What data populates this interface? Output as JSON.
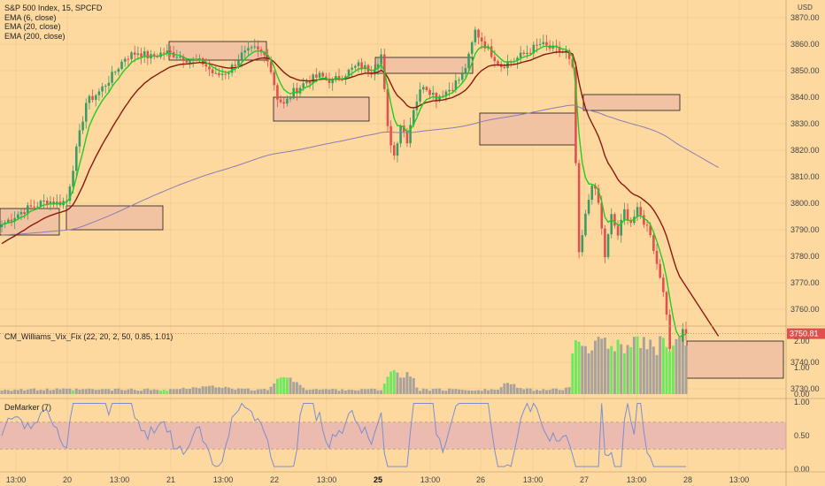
{
  "header": {
    "symbol": "S&P 500 Index, 15, SPCFD",
    "indicators": [
      "EMA (6, close)",
      "EMA (20, close)",
      "EMA (200, close)"
    ],
    "currency": "USD"
  },
  "price_axis": {
    "ticks": [
      3870,
      3860,
      3850,
      3840,
      3830,
      3820,
      3810,
      3800,
      3790,
      3780,
      3770,
      3760,
      3740,
      3730
    ],
    "last_price": "3750.81"
  },
  "vix_panel": {
    "title": "CM_Williams_Vix_Fix (22, 20, 2, 50, 0.85, 1.01)",
    "ticks": [
      "2.00",
      "1.00",
      "0.00"
    ]
  },
  "demarker_panel": {
    "title": "DeMarker (7)",
    "ticks": [
      "1.00",
      "0.50",
      "0.00"
    ]
  },
  "time_axis": {
    "labels": [
      "13:00",
      "20",
      "13:00",
      "21",
      "13:00",
      "22",
      "13:00",
      "25",
      "13:00",
      "26",
      "13:00",
      "27",
      "13:00",
      "28",
      "13:00"
    ],
    "bold": [
      "25"
    ]
  },
  "colors": {
    "background": "#fdd9a0",
    "up": "#3c9b63",
    "down": "#e0504c",
    "ema6": "#22cc22",
    "ema20": "#8b1a0a",
    "ema200": "#8a7cb8",
    "vix_high": "#6ee85c",
    "vix_normal": "#a8a29a",
    "zone_fill": "#f2c3a3",
    "demarker_line": "#7a8fd0",
    "demarker_band": "#ebbbb0"
  },
  "chart_data": [
    {
      "type": "candlestick",
      "title": "S&P 500 Index, 15, SPCFD",
      "ylabel": "USD",
      "ylim": [
        3727,
        3877
      ],
      "x_session_labels": [
        "20",
        "21",
        "22",
        "25",
        "26",
        "27",
        "28"
      ],
      "last_price": 3750.81,
      "price_path": [
        [
          0,
          3792
        ],
        [
          5,
          3796
        ],
        [
          8,
          3798
        ],
        [
          12,
          3800
        ],
        [
          14,
          3801
        ],
        [
          17,
          3800
        ],
        [
          20,
          3801
        ],
        [
          23,
          3820
        ],
        [
          26,
          3838
        ],
        [
          30,
          3842
        ],
        [
          34,
          3848
        ],
        [
          38,
          3855
        ],
        [
          42,
          3857
        ],
        [
          46,
          3855
        ],
        [
          50,
          3857
        ],
        [
          54,
          3856
        ],
        [
          58,
          3854
        ],
        [
          62,
          3853
        ],
        [
          66,
          3848
        ],
        [
          70,
          3850
        ],
        [
          74,
          3856
        ],
        [
          78,
          3858
        ],
        [
          82,
          3855
        ],
        [
          85,
          3840
        ],
        [
          87,
          3837
        ],
        [
          90,
          3842
        ],
        [
          94,
          3846
        ],
        [
          98,
          3848
        ],
        [
          102,
          3846
        ],
        [
          106,
          3849
        ],
        [
          110,
          3852
        ],
        [
          114,
          3850
        ],
        [
          117,
          3856
        ],
        [
          119,
          3828
        ],
        [
          121,
          3818
        ],
        [
          123,
          3830
        ],
        [
          125,
          3824
        ],
        [
          127,
          3836
        ],
        [
          130,
          3845
        ],
        [
          134,
          3840
        ],
        [
          138,
          3843
        ],
        [
          142,
          3848
        ],
        [
          144,
          3855
        ],
        [
          146,
          3865
        ],
        [
          150,
          3858
        ],
        [
          154,
          3852
        ],
        [
          158,
          3854
        ],
        [
          162,
          3857
        ],
        [
          166,
          3860
        ],
        [
          170,
          3858
        ],
        [
          174,
          3857
        ],
        [
          176,
          3850
        ],
        [
          177,
          3815
        ],
        [
          178,
          3780
        ],
        [
          180,
          3795
        ],
        [
          182,
          3808
        ],
        [
          184,
          3800
        ],
        [
          186,
          3780
        ],
        [
          188,
          3795
        ],
        [
          190,
          3788
        ],
        [
          192,
          3797
        ],
        [
          194,
          3793
        ],
        [
          196,
          3797
        ],
        [
          198,
          3793
        ],
        [
          200,
          3789
        ],
        [
          202,
          3777
        ],
        [
          204,
          3768
        ],
        [
          206,
          3745
        ],
        [
          208,
          3738
        ],
        [
          209,
          3745
        ],
        [
          210,
          3752
        ],
        [
          211,
          3750.81
        ]
      ],
      "series_labels": [
        "EMA (6, close)",
        "EMA (20, close)",
        "EMA (200, close)"
      ],
      "supply_demand_zones": [
        {
          "top": 3798,
          "bottom": 3788
        },
        {
          "top": 3799,
          "bottom": 3790
        },
        {
          "top": 3861,
          "bottom": 3854
        },
        {
          "top": 3840,
          "bottom": 3831
        },
        {
          "top": 3855,
          "bottom": 3849
        },
        {
          "top": 3834,
          "bottom": 3822
        },
        {
          "top": 3841,
          "bottom": 3835
        },
        {
          "top": 3748,
          "bottom": 3734
        }
      ]
    },
    {
      "type": "bar",
      "title": "CM_Williams_Vix_Fix (22, 20, 2, 50, 0.85, 1.01)",
      "ylim": [
        0,
        2.4
      ],
      "highlight_rule": "green bars when Vix Fix exceeds upper band",
      "approx_peak_values": {
        "22": 1.0,
        "25": 1.5,
        "27": 2.2,
        "28": 2.2
      }
    },
    {
      "type": "line",
      "title": "DeMarker (7)",
      "ylim": [
        0,
        1
      ],
      "bands": [
        0.3,
        0.7
      ],
      "range_observed": [
        0.05,
        0.98
      ]
    }
  ]
}
